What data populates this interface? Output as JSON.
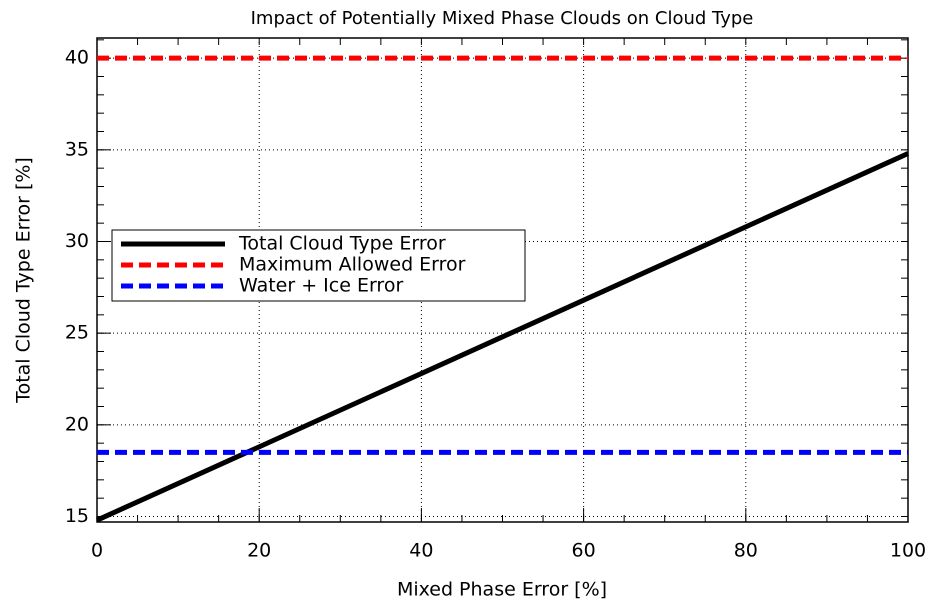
{
  "chart_data": {
    "type": "line",
    "title": "Impact of Potentially Mixed Phase Clouds on Cloud Type",
    "xlabel": "Mixed Phase Error [%]",
    "ylabel": "Total Cloud Type Error [%]",
    "x": [
      0,
      100
    ],
    "series": [
      {
        "name": "Total Cloud Type Error",
        "color": "#000000",
        "dash": "solid",
        "values": [
          14.8,
          34.8
        ]
      },
      {
        "name": "Maximum Allowed Error",
        "color": "#ff0000",
        "dash": "dashed",
        "values": [
          40,
          40
        ]
      },
      {
        "name": "Water + Ice Error",
        "color": "#0000ff",
        "dash": "dashed",
        "values": [
          18.5,
          18.5
        ]
      }
    ],
    "xlim": [
      0,
      100
    ],
    "xticks": [
      0,
      20,
      40,
      60,
      80,
      100
    ],
    "ylim": [
      14.7,
      41.1
    ],
    "yticks": [
      15,
      20,
      25,
      30,
      35,
      40
    ],
    "grid": true,
    "legend": "left"
  }
}
